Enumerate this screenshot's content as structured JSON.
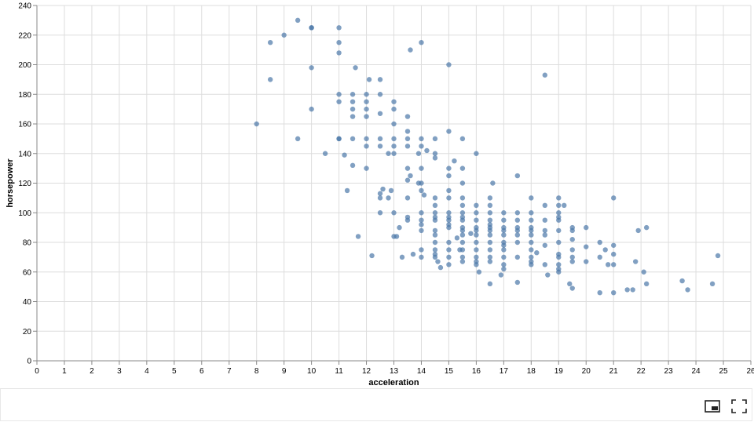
{
  "chart_data": {
    "type": "scatter",
    "title": "",
    "xlabel": "acceleration",
    "ylabel": "horsepower",
    "xlim": [
      0,
      26
    ],
    "ylim": [
      0,
      240
    ],
    "x_ticks": [
      "0",
      "1",
      "2",
      "3",
      "4",
      "5",
      "6",
      "7",
      "8",
      "9",
      "10",
      "11",
      "12",
      "13",
      "14",
      "15",
      "16",
      "17",
      "18",
      "19",
      "20",
      "21",
      "22",
      "23",
      "24",
      "25",
      "26"
    ],
    "y_ticks": [
      "0",
      "20",
      "40",
      "60",
      "80",
      "100",
      "120",
      "140",
      "160",
      "180",
      "200",
      "220",
      "240"
    ],
    "grid": true,
    "point_color": "#4c78a8",
    "points": [
      [
        8,
        160
      ],
      [
        8.5,
        215
      ],
      [
        8.5,
        190
      ],
      [
        9,
        220
      ],
      [
        9.5,
        230
      ],
      [
        9.5,
        150
      ],
      [
        10,
        225
      ],
      [
        10,
        225
      ],
      [
        10,
        198
      ],
      [
        10,
        170
      ],
      [
        10.5,
        140
      ],
      [
        11,
        225
      ],
      [
        11,
        215
      ],
      [
        11,
        208
      ],
      [
        11,
        180
      ],
      [
        11,
        175
      ],
      [
        11,
        150
      ],
      [
        11,
        150
      ],
      [
        11.2,
        139
      ],
      [
        11.3,
        115
      ],
      [
        11.5,
        180
      ],
      [
        11.5,
        175
      ],
      [
        11.5,
        170
      ],
      [
        11.5,
        165
      ],
      [
        11.5,
        150
      ],
      [
        11.5,
        132
      ],
      [
        11.6,
        198
      ],
      [
        11.7,
        84
      ],
      [
        12,
        180
      ],
      [
        12,
        175
      ],
      [
        12,
        170
      ],
      [
        12,
        165
      ],
      [
        12,
        150
      ],
      [
        12,
        145
      ],
      [
        12,
        130
      ],
      [
        12.1,
        190
      ],
      [
        12.2,
        71
      ],
      [
        12.5,
        190
      ],
      [
        12.5,
        180
      ],
      [
        12.5,
        167
      ],
      [
        12.5,
        150
      ],
      [
        12.5,
        145
      ],
      [
        12.5,
        113
      ],
      [
        12.5,
        110
      ],
      [
        12.5,
        100
      ],
      [
        12.6,
        116
      ],
      [
        12.8,
        140
      ],
      [
        12.8,
        110
      ],
      [
        12.9,
        115
      ],
      [
        13,
        175
      ],
      [
        13,
        170
      ],
      [
        13,
        160
      ],
      [
        13,
        150
      ],
      [
        13,
        145
      ],
      [
        13,
        140
      ],
      [
        13,
        100
      ],
      [
        13,
        84
      ],
      [
        13.1,
        84
      ],
      [
        13.2,
        90
      ],
      [
        13.3,
        70
      ],
      [
        13.5,
        165
      ],
      [
        13.5,
        155
      ],
      [
        13.5,
        150
      ],
      [
        13.5,
        145
      ],
      [
        13.5,
        130
      ],
      [
        13.5,
        122
      ],
      [
        13.5,
        110
      ],
      [
        13.5,
        97
      ],
      [
        13.5,
        95
      ],
      [
        13.6,
        210
      ],
      [
        13.6,
        125
      ],
      [
        13.7,
        72
      ],
      [
        13.9,
        120
      ],
      [
        13.9,
        140
      ],
      [
        14,
        215
      ],
      [
        14,
        150
      ],
      [
        14,
        145
      ],
      [
        14,
        130
      ],
      [
        14,
        120
      ],
      [
        14,
        115
      ],
      [
        14,
        100
      ],
      [
        14,
        95
      ],
      [
        14,
        92
      ],
      [
        14,
        88
      ],
      [
        14,
        75
      ],
      [
        14,
        70
      ],
      [
        14.1,
        112
      ],
      [
        14.2,
        142
      ],
      [
        14.5,
        150
      ],
      [
        14.5,
        140
      ],
      [
        14.5,
        137
      ],
      [
        14.5,
        110
      ],
      [
        14.5,
        105
      ],
      [
        14.5,
        100
      ],
      [
        14.5,
        97
      ],
      [
        14.5,
        95
      ],
      [
        14.5,
        88
      ],
      [
        14.5,
        85
      ],
      [
        14.5,
        80
      ],
      [
        14.5,
        75
      ],
      [
        14.5,
        72
      ],
      [
        14.5,
        70
      ],
      [
        14.6,
        67
      ],
      [
        14.7,
        63
      ],
      [
        15,
        200
      ],
      [
        15,
        155
      ],
      [
        15,
        130
      ],
      [
        15,
        125
      ],
      [
        15,
        115
      ],
      [
        15,
        110
      ],
      [
        15,
        100
      ],
      [
        15,
        97
      ],
      [
        15,
        95
      ],
      [
        15,
        92
      ],
      [
        15,
        90
      ],
      [
        15,
        80
      ],
      [
        15,
        75
      ],
      [
        15,
        70
      ],
      [
        15,
        65
      ],
      [
        15.2,
        135
      ],
      [
        15.3,
        83
      ],
      [
        15.4,
        75
      ],
      [
        15.5,
        150
      ],
      [
        15.5,
        130
      ],
      [
        15.5,
        120
      ],
      [
        15.5,
        110
      ],
      [
        15.5,
        105
      ],
      [
        15.5,
        100
      ],
      [
        15.5,
        97
      ],
      [
        15.5,
        95
      ],
      [
        15.5,
        90
      ],
      [
        15.5,
        88
      ],
      [
        15.5,
        85
      ],
      [
        15.5,
        80
      ],
      [
        15.5,
        75
      ],
      [
        15.5,
        70
      ],
      [
        15.5,
        67
      ],
      [
        15.8,
        86
      ],
      [
        16,
        140
      ],
      [
        16,
        105
      ],
      [
        16,
        100
      ],
      [
        16,
        95
      ],
      [
        16,
        90
      ],
      [
        16,
        88
      ],
      [
        16,
        85
      ],
      [
        16,
        80
      ],
      [
        16,
        75
      ],
      [
        16,
        70
      ],
      [
        16,
        67
      ],
      [
        16,
        65
      ],
      [
        16.1,
        60
      ],
      [
        16.5,
        110
      ],
      [
        16.5,
        105
      ],
      [
        16.5,
        100
      ],
      [
        16.5,
        95
      ],
      [
        16.5,
        92
      ],
      [
        16.5,
        90
      ],
      [
        16.5,
        88
      ],
      [
        16.5,
        85
      ],
      [
        16.5,
        80
      ],
      [
        16.5,
        75
      ],
      [
        16.5,
        70
      ],
      [
        16.5,
        67
      ],
      [
        16.5,
        52
      ],
      [
        16.6,
        120
      ],
      [
        17,
        100
      ],
      [
        17,
        95
      ],
      [
        17,
        90
      ],
      [
        17,
        88
      ],
      [
        17,
        85
      ],
      [
        17,
        80
      ],
      [
        17,
        78
      ],
      [
        17,
        75
      ],
      [
        17,
        70
      ],
      [
        17,
        65
      ],
      [
        17,
        62
      ],
      [
        16.9,
        58
      ],
      [
        17.5,
        125
      ],
      [
        17.5,
        100
      ],
      [
        17.5,
        95
      ],
      [
        17.5,
        90
      ],
      [
        17.5,
        88
      ],
      [
        17.5,
        85
      ],
      [
        17.5,
        80
      ],
      [
        17.5,
        70
      ],
      [
        17.5,
        53
      ],
      [
        18,
        110
      ],
      [
        18,
        100
      ],
      [
        18,
        95
      ],
      [
        18,
        90
      ],
      [
        18,
        88
      ],
      [
        18,
        85
      ],
      [
        18,
        80
      ],
      [
        18,
        75
      ],
      [
        18,
        70
      ],
      [
        18,
        67
      ],
      [
        18,
        65
      ],
      [
        18.2,
        73
      ],
      [
        18.5,
        193
      ],
      [
        18.5,
        105
      ],
      [
        18.5,
        95
      ],
      [
        18.5,
        88
      ],
      [
        18.5,
        85
      ],
      [
        18.5,
        78
      ],
      [
        18.5,
        65
      ],
      [
        18.6,
        58
      ],
      [
        19,
        110
      ],
      [
        19,
        105
      ],
      [
        19,
        100
      ],
      [
        19,
        97
      ],
      [
        19,
        95
      ],
      [
        19,
        88
      ],
      [
        19,
        80
      ],
      [
        19,
        72
      ],
      [
        19,
        70
      ],
      [
        19,
        65
      ],
      [
        19,
        62
      ],
      [
        19,
        60
      ],
      [
        19.2,
        105
      ],
      [
        19.4,
        52
      ],
      [
        19.5,
        90
      ],
      [
        19.5,
        88
      ],
      [
        19.5,
        82
      ],
      [
        19.5,
        75
      ],
      [
        19.5,
        70
      ],
      [
        19.5,
        67
      ],
      [
        19.5,
        49
      ],
      [
        20,
        90
      ],
      [
        20,
        77
      ],
      [
        20,
        67
      ],
      [
        20.5,
        80
      ],
      [
        20.5,
        70
      ],
      [
        20.5,
        46
      ],
      [
        20.7,
        75
      ],
      [
        20.8,
        65
      ],
      [
        21,
        110
      ],
      [
        21,
        78
      ],
      [
        21,
        72
      ],
      [
        21,
        65
      ],
      [
        21,
        46
      ],
      [
        21.5,
        48
      ],
      [
        21.7,
        48
      ],
      [
        21.8,
        67
      ],
      [
        21.9,
        88
      ],
      [
        22.1,
        60
      ],
      [
        22.2,
        90
      ],
      [
        22.2,
        52
      ],
      [
        23.5,
        54
      ],
      [
        23.7,
        48
      ],
      [
        24.6,
        52
      ],
      [
        24.8,
        71
      ]
    ]
  },
  "toolbar": {
    "pip_icon": "picture-in-picture-icon",
    "fullscreen_icon": "fullscreen-icon"
  }
}
